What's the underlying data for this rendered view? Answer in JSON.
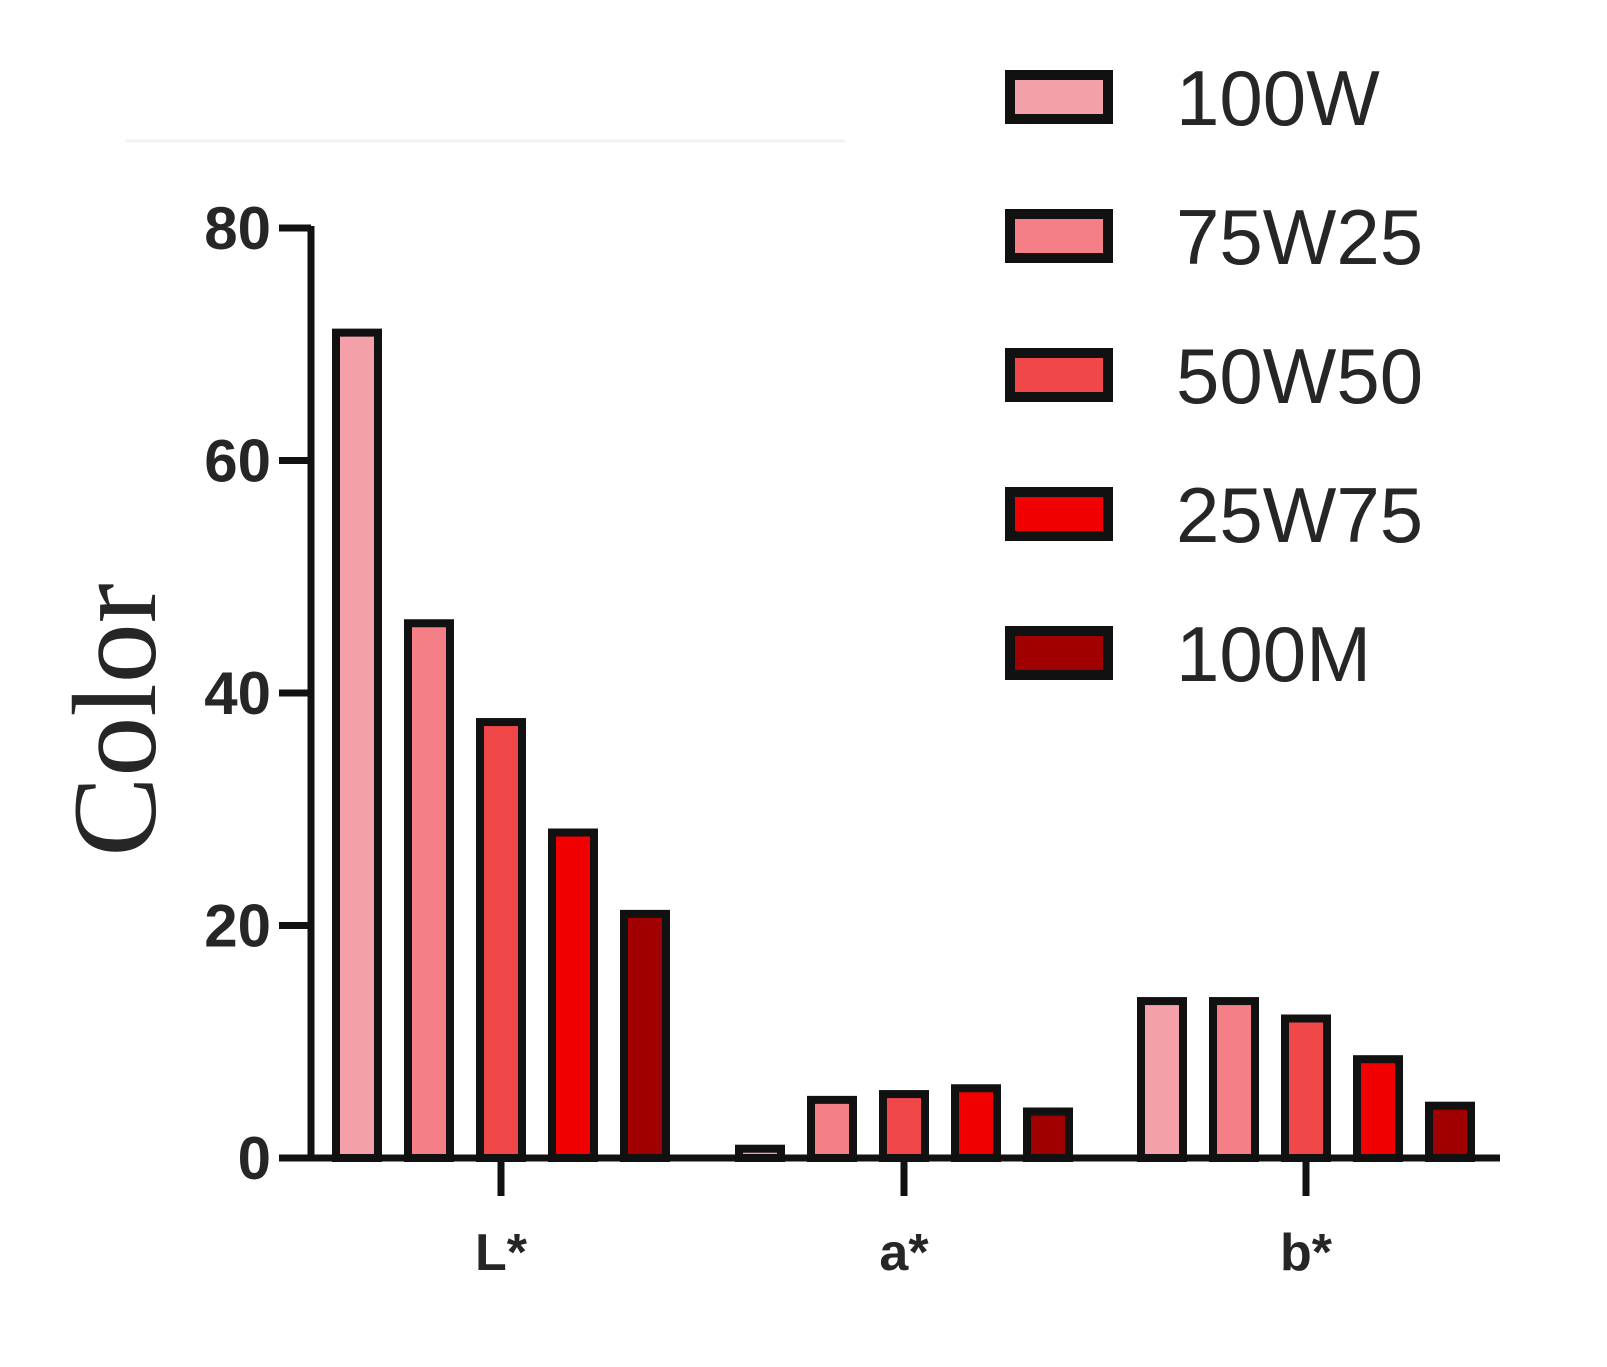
{
  "chart_data": {
    "type": "bar",
    "ylabel": "Color",
    "xlabel": "",
    "categories": [
      "L*",
      "a*",
      "b*"
    ],
    "ylim": [
      0,
      80
    ],
    "yticks": [
      0,
      20,
      40,
      60,
      80
    ],
    "grid": false,
    "legend_position": "top-right",
    "series": [
      {
        "name": "100W",
        "color": "#F4A0A8",
        "values": [
          71,
          0.8,
          13.5
        ]
      },
      {
        "name": "75W25",
        "color": "#F47F86",
        "values": [
          46,
          5,
          13.5
        ]
      },
      {
        "name": "50W50",
        "color": "#F04848",
        "values": [
          37.5,
          5.5,
          12
        ]
      },
      {
        "name": "25W75",
        "color": "#F00000",
        "values": [
          28,
          6,
          8.5
        ]
      },
      {
        "name": "100M",
        "color": "#A00000",
        "values": [
          21,
          4,
          4.5
        ]
      }
    ]
  }
}
